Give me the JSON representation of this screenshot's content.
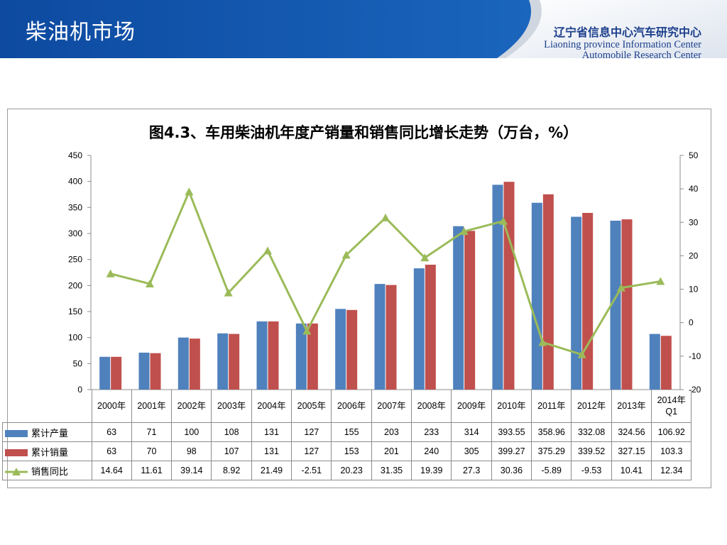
{
  "header": {
    "slide_title": "柴油机市场",
    "logo_cn": "辽宁省信息中心汽车研究中心",
    "logo_en_line1": "Liaoning province Information Center",
    "logo_en_line2": "Automobile Research Center"
  },
  "colors": {
    "banner": "#1d56a6",
    "production_bar": "#4f81bd",
    "sales_bar": "#c0504d",
    "growth_line": "#9bbb59"
  },
  "chart_data": {
    "type": "bar+line",
    "title": "图4.3、车用柴油机年度产销量和销售同比增长走势（万台，%）",
    "categories": [
      "2000年",
      "2001年",
      "2002年",
      "2003年",
      "2004年",
      "2005年",
      "2006年",
      "2007年",
      "2008年",
      "2009年",
      "2010年",
      "2011年",
      "2012年",
      "2013年",
      "2014年\nQ1"
    ],
    "series": [
      {
        "name": "累计产量",
        "type": "bar",
        "axis": "left",
        "values": [
          "63",
          "71",
          "100",
          "108",
          "131",
          "127",
          "155",
          "203",
          "233",
          "314",
          "393.55",
          "358.96",
          "332.08",
          "324.56",
          "106.92"
        ]
      },
      {
        "name": "累计销量",
        "type": "bar",
        "axis": "left",
        "values": [
          "63",
          "70",
          "98",
          "107",
          "131",
          "127",
          "153",
          "201",
          "240",
          "305",
          "399.27",
          "375.29",
          "339.52",
          "327.15",
          "103.3"
        ]
      },
      {
        "name": "销售同比",
        "type": "line",
        "axis": "right",
        "values": [
          "14.64",
          "11.61",
          "39.14",
          "8.92",
          "21.49",
          "-2.51",
          "20.23",
          "31.35",
          "19.39",
          "27.3",
          "30.36",
          "-5.89",
          "-9.53",
          "10.41",
          "12.34"
        ]
      }
    ],
    "y_left": {
      "min": 0,
      "max": 450,
      "ticks": [
        0,
        50,
        100,
        150,
        200,
        250,
        300,
        350,
        400,
        450
      ]
    },
    "y_right": {
      "min": -20,
      "max": 50,
      "ticks": [
        -20,
        -10,
        0,
        10,
        20,
        30,
        40,
        50
      ]
    },
    "legend": "data-table",
    "grid": false
  }
}
